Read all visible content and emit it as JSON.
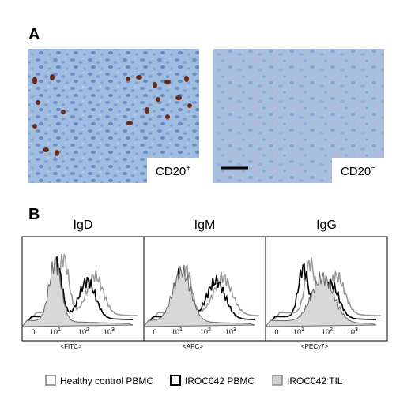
{
  "panel_a": {
    "label": "A",
    "images": [
      {
        "label": {
          "text": "CD20",
          "sup": "+"
        }
      },
      {
        "label": {
          "text": "CD20",
          "sup": "−"
        }
      }
    ]
  },
  "panel_b": {
    "label": "B",
    "histograms": [
      {
        "title": "IgD",
        "x_label": "<FITC>",
        "ticks": [
          "0",
          {
            "base": "10",
            "sup": "1"
          },
          {
            "base": "10",
            "sup": "2"
          },
          {
            "base": "10",
            "sup": "3"
          }
        ]
      },
      {
        "title": "IgM",
        "x_label": "<APC>",
        "ticks": [
          "0",
          {
            "base": "10",
            "sup": "1"
          },
          {
            "base": "10",
            "sup": "2"
          },
          {
            "base": "10",
            "sup": "3"
          }
        ]
      },
      {
        "title": "IgG",
        "x_label": "<PECy7>",
        "ticks": [
          "0",
          {
            "base": "10",
            "sup": "1"
          },
          {
            "base": "10",
            "sup": "2"
          },
          {
            "base": "10",
            "sup": "3"
          }
        ]
      }
    ],
    "legend": [
      "Healthy control PBMC",
      "IROC042 PBMC",
      "IROC042 TIL"
    ]
  }
}
